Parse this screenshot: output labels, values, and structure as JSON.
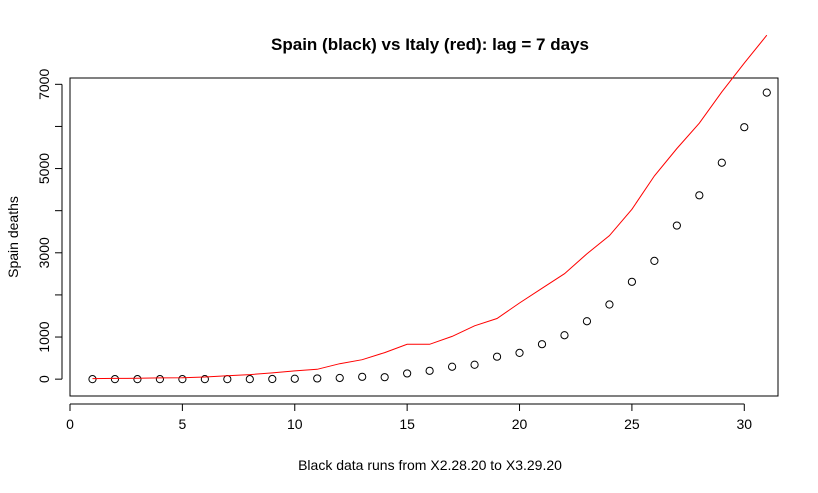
{
  "chart_data": {
    "type": "scatter",
    "title": "Spain (black) vs Italy (red): lag = 7 days",
    "xlabel": "Black data runs from X2.28.20 to X3.29.20",
    "ylabel": "Spain deaths",
    "xlim": [
      0,
      31.5
    ],
    "ylim": [
      -400,
      7150
    ],
    "xticks": [
      0,
      5,
      10,
      15,
      20,
      25,
      30
    ],
    "yticks": [
      0,
      1000,
      3000,
      5000,
      7000
    ],
    "grid": false,
    "series": [
      {
        "mark": "points",
        "color": "#000000",
        "x": [
          1,
          2,
          3,
          4,
          5,
          6,
          7,
          8,
          9,
          10,
          11,
          12,
          13,
          14,
          15,
          16,
          17,
          18,
          19,
          20,
          21,
          22,
          23,
          24,
          25,
          26,
          27,
          28,
          29,
          30,
          31
        ],
        "y": [
          0,
          0,
          0,
          0,
          0,
          0,
          0,
          0,
          3,
          10,
          17,
          28,
          55,
          47,
          136,
          198,
          295,
          342,
          533,
          623,
          830,
          1043,
          1375,
          1772,
          2311,
          2808,
          3647,
          4365,
          5138,
          5982,
          6803
        ]
      },
      {
        "mark": "line",
        "color": "#ff0000",
        "x": [
          1,
          2,
          3,
          4,
          5,
          6,
          7,
          8,
          9,
          10,
          11,
          12,
          13,
          14,
          15,
          16,
          17,
          18,
          19,
          20,
          21,
          22,
          23,
          24,
          25,
          26,
          27,
          28,
          29,
          30,
          31
        ],
        "y": [
          12,
          17,
          21,
          29,
          34,
          52,
          79,
          107,
          148,
          197,
          233,
          366,
          463,
          631,
          827,
          827,
          1016,
          1266,
          1441,
          1809,
          2158,
          2503,
          2978,
          3405,
          4032,
          4825,
          5476,
          6077,
          6820,
          7503,
          8165
        ]
      }
    ]
  }
}
